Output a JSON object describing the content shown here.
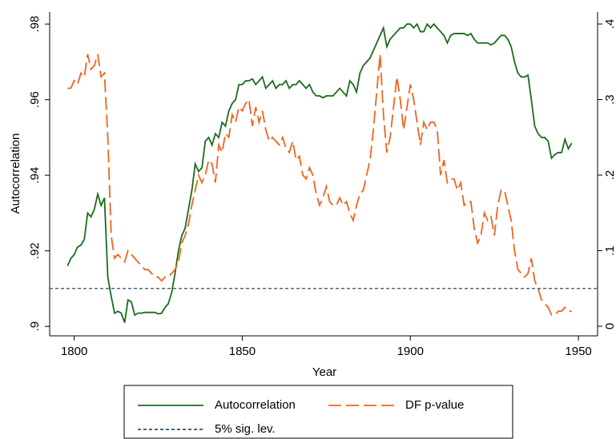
{
  "chart_data": {
    "type": "line",
    "x_label": "Year",
    "y_label": "Autocorrelation",
    "x": [
      1798,
      1799,
      1800,
      1801,
      1802,
      1803,
      1804,
      1805,
      1806,
      1807,
      1808,
      1809,
      1810,
      1811,
      1812,
      1813,
      1814,
      1815,
      1816,
      1817,
      1818,
      1819,
      1820,
      1821,
      1822,
      1823,
      1824,
      1825,
      1826,
      1827,
      1828,
      1829,
      1830,
      1831,
      1832,
      1833,
      1834,
      1835,
      1836,
      1837,
      1838,
      1839,
      1840,
      1841,
      1842,
      1843,
      1844,
      1845,
      1846,
      1847,
      1848,
      1849,
      1850,
      1851,
      1852,
      1853,
      1854,
      1855,
      1856,
      1857,
      1858,
      1859,
      1860,
      1861,
      1862,
      1863,
      1864,
      1865,
      1866,
      1867,
      1868,
      1869,
      1870,
      1871,
      1872,
      1873,
      1874,
      1875,
      1876,
      1877,
      1878,
      1879,
      1880,
      1881,
      1882,
      1883,
      1884,
      1885,
      1886,
      1887,
      1888,
      1889,
      1890,
      1891,
      1892,
      1893,
      1894,
      1895,
      1896,
      1897,
      1898,
      1899,
      1900,
      1901,
      1902,
      1903,
      1904,
      1905,
      1906,
      1907,
      1908,
      1909,
      1910,
      1911,
      1912,
      1913,
      1914,
      1915,
      1916,
      1917,
      1918,
      1919,
      1920,
      1921,
      1922,
      1923,
      1924,
      1925,
      1926,
      1927,
      1928,
      1929,
      1930,
      1931,
      1932,
      1933,
      1934,
      1935,
      1936,
      1937,
      1938,
      1939,
      1940,
      1941,
      1942,
      1943,
      1944,
      1945,
      1946,
      1947,
      1948
    ],
    "series": [
      {
        "name": "Autocorrelation",
        "color": "#1b6b1b",
        "axis": "y",
        "dash": "none",
        "values": [
          0.916,
          0.918,
          0.919,
          0.921,
          0.9215,
          0.923,
          0.93,
          0.929,
          0.931,
          0.935,
          0.932,
          0.934,
          0.913,
          0.908,
          0.9035,
          0.904,
          0.9035,
          0.901,
          0.907,
          0.9065,
          0.903,
          0.9035,
          0.9035,
          0.9037,
          0.9037,
          0.9037,
          0.9037,
          0.9033,
          0.9035,
          0.905,
          0.906,
          0.909,
          0.914,
          0.92,
          0.924,
          0.926,
          0.931,
          0.936,
          0.943,
          0.941,
          0.942,
          0.949,
          0.95,
          0.948,
          0.951,
          0.95,
          0.954,
          0.953,
          0.957,
          0.959,
          0.96,
          0.964,
          0.964,
          0.965,
          0.965,
          0.9655,
          0.964,
          0.965,
          0.966,
          0.963,
          0.964,
          0.965,
          0.963,
          0.964,
          0.964,
          0.965,
          0.963,
          0.964,
          0.964,
          0.965,
          0.964,
          0.963,
          0.964,
          0.962,
          0.961,
          0.961,
          0.9605,
          0.961,
          0.961,
          0.961,
          0.962,
          0.963,
          0.962,
          0.961,
          0.965,
          0.964,
          0.962,
          0.967,
          0.969,
          0.97,
          0.971,
          0.973,
          0.975,
          0.977,
          0.979,
          0.974,
          0.976,
          0.977,
          0.978,
          0.979,
          0.979,
          0.98,
          0.98,
          0.979,
          0.98,
          0.978,
          0.978,
          0.98,
          0.979,
          0.98,
          0.979,
          0.978,
          0.977,
          0.975,
          0.977,
          0.9775,
          0.9775,
          0.9775,
          0.9775,
          0.977,
          0.9775,
          0.976,
          0.975,
          0.975,
          0.975,
          0.975,
          0.9745,
          0.975,
          0.976,
          0.977,
          0.977,
          0.976,
          0.974,
          0.97,
          0.967,
          0.966,
          0.966,
          0.9665,
          0.96,
          0.953,
          0.951,
          0.95,
          0.95,
          0.949,
          0.9445,
          0.9455,
          0.946,
          0.946,
          0.9495,
          0.947,
          0.9485
        ]
      },
      {
        "name": "DF p-value",
        "color": "#f0641e",
        "axis": "y2",
        "dash": "16 6",
        "values": [
          0.315,
          0.315,
          0.325,
          0.32,
          0.335,
          0.33,
          0.36,
          0.34,
          0.345,
          0.36,
          0.33,
          0.335,
          0.25,
          0.12,
          0.09,
          0.095,
          0.09,
          0.085,
          0.1,
          0.095,
          0.09,
          0.085,
          0.08,
          0.075,
          0.075,
          0.07,
          0.065,
          0.065,
          0.06,
          0.065,
          0.065,
          0.07,
          0.075,
          0.085,
          0.11,
          0.12,
          0.135,
          0.16,
          0.18,
          0.2,
          0.19,
          0.2,
          0.22,
          0.215,
          0.19,
          0.24,
          0.23,
          0.255,
          0.25,
          0.28,
          0.27,
          0.29,
          0.285,
          0.295,
          0.3,
          0.265,
          0.29,
          0.27,
          0.285,
          0.26,
          0.245,
          0.25,
          0.245,
          0.24,
          0.25,
          0.235,
          0.23,
          0.245,
          0.22,
          0.225,
          0.2,
          0.195,
          0.21,
          0.2,
          0.175,
          0.16,
          0.17,
          0.185,
          0.165,
          0.16,
          0.16,
          0.17,
          0.16,
          0.165,
          0.15,
          0.14,
          0.16,
          0.175,
          0.18,
          0.2,
          0.22,
          0.26,
          0.31,
          0.36,
          0.28,
          0.23,
          0.25,
          0.29,
          0.33,
          0.3,
          0.26,
          0.29,
          0.32,
          0.3,
          0.27,
          0.24,
          0.27,
          0.26,
          0.27,
          0.27,
          0.26,
          0.2,
          0.22,
          0.19,
          0.195,
          0.195,
          0.18,
          0.19,
          0.16,
          0.165,
          0.165,
          0.13,
          0.11,
          0.12,
          0.15,
          0.14,
          0.145,
          0.12,
          0.16,
          0.18,
          0.18,
          0.16,
          0.14,
          0.1,
          0.075,
          0.07,
          0.065,
          0.07,
          0.09,
          0.06,
          0.05,
          0.035,
          0.03,
          0.025,
          0.015,
          0.015,
          0.02,
          0.02,
          0.025,
          0.02,
          0.02
        ]
      }
    ],
    "reference_line": {
      "name": "5% sig. lev.",
      "value": 0.05,
      "axis": "y2",
      "color": "#2b4f6e",
      "dash": "4 3"
    },
    "xlim": [
      1792.7,
      1955.7
    ],
    "xticks": [
      1800,
      1850,
      1900,
      1950
    ],
    "ylim": [
      0.8975,
      0.9832
    ],
    "yticks": [
      {
        "value": 0.9,
        "label": ".9"
      },
      {
        "value": 0.92,
        "label": ".92"
      },
      {
        "value": 0.94,
        "label": ".94"
      },
      {
        "value": 0.96,
        "label": ".96"
      },
      {
        "value": 0.98,
        "label": ".98"
      }
    ],
    "y2lim": [
      -0.0127,
      0.4159
    ],
    "y2ticks": [
      0,
      {
        "value": 0.1,
        "label": ".1"
      },
      {
        "value": 0.2,
        "label": ".2"
      },
      {
        "value": 0.3,
        "label": ".3"
      },
      {
        "value": 0.4,
        "label": ".4"
      }
    ],
    "legend": "bottom"
  }
}
